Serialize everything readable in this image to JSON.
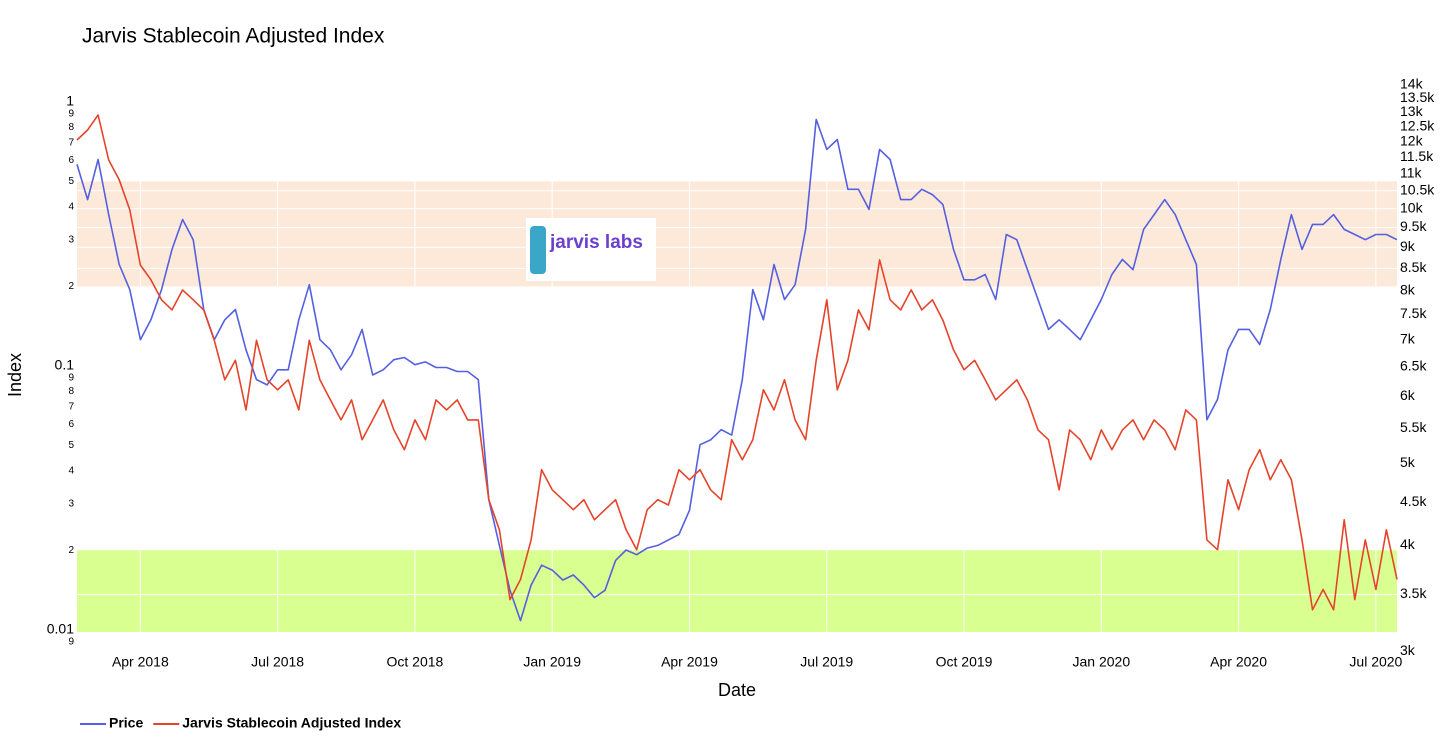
{
  "chart_data": {
    "type": "line",
    "title": "Jarvis Stablecoin Adjusted Index",
    "xlabel": "Date",
    "ylabel": "Index",
    "logo_text": "jarvis labs",
    "categories": [
      null,
      null,
      null,
      null,
      null,
      null,
      "Apr 2018",
      null,
      null,
      null,
      null,
      null,
      null,
      null,
      null,
      null,
      null,
      null,
      null,
      "Jul 2018",
      null,
      null,
      null,
      null,
      null,
      null,
      null,
      null,
      null,
      null,
      null,
      null,
      "Oct 2018",
      null,
      null,
      null,
      null,
      null,
      null,
      null,
      null,
      null,
      null,
      null,
      null,
      "Jan 2019",
      null,
      null,
      null,
      null,
      null,
      null,
      null,
      null,
      null,
      null,
      null,
      null,
      "Apr 2019",
      null,
      null,
      null,
      null,
      null,
      null,
      null,
      null,
      null,
      null,
      null,
      null,
      "Jul 2019",
      null,
      null,
      null,
      null,
      null,
      null,
      null,
      null,
      null,
      null,
      null,
      null,
      "Oct 2019",
      null,
      null,
      null,
      null,
      null,
      null,
      null,
      null,
      null,
      null,
      null,
      null,
      "Jan 2020",
      null,
      null,
      null,
      null,
      null,
      null,
      null,
      null,
      null,
      null,
      null,
      null,
      "Apr 2020",
      null,
      null,
      null,
      null,
      null,
      null,
      null,
      null,
      null,
      null,
      null,
      null,
      "Jul 2020",
      null,
      null
    ],
    "series": [
      {
        "name": "Price",
        "color": "#5560e0",
        "axis": "y2",
        "values": [
          11280,
          10250,
          11430,
          9840,
          8590,
          8020,
          7000,
          7390,
          8020,
          8950,
          9710,
          9190,
          7600,
          7000,
          7390,
          7600,
          6810,
          6280,
          6190,
          6450,
          6450,
          7390,
          8130,
          7000,
          6810,
          6450,
          6720,
          7200,
          6360,
          6450,
          6630,
          6670,
          6540,
          6590,
          6490,
          6490,
          6420,
          6420,
          6280,
          4530,
          4000,
          3540,
          3260,
          3590,
          3790,
          3740,
          3640,
          3690,
          3590,
          3470,
          3540,
          3840,
          3950,
          3900,
          3970,
          4000,
          4060,
          4120,
          4400,
          5260,
          5330,
          5480,
          5400,
          6280,
          8020,
          7390,
          8590,
          7810,
          8130,
          9450,
          12750,
          11750,
          12070,
          10540,
          10540,
          9980,
          11750,
          11430,
          10250,
          10250,
          10540,
          10390,
          10110,
          8950,
          8240,
          8240,
          8360,
          7810,
          9320,
          9190,
          8470,
          7810,
          7200,
          7390,
          7200,
          7000,
          7390,
          7810,
          8360,
          8710,
          8470,
          9450,
          9840,
          10250,
          9840,
          9190,
          8590,
          5630,
          5950,
          6810,
          7200,
          7200,
          6910,
          7600,
          8710,
          9840,
          8950,
          9580,
          9580,
          9840,
          9450,
          9320,
          9190,
          9320,
          9320,
          9190
        ]
      },
      {
        "name": "Jarvis Stablecoin Adjusted Index",
        "color": "#e5442a",
        "values": [
          0.718,
          0.783,
          0.893,
          0.603,
          0.507,
          0.39,
          0.241,
          0.212,
          0.178,
          0.163,
          0.194,
          0.178,
          0.163,
          0.125,
          0.0885,
          0.105,
          0.0681,
          0.125,
          0.0885,
          0.0811,
          0.0885,
          0.0681,
          0.125,
          0.0885,
          0.0743,
          0.0624,
          0.0743,
          0.0525,
          0.0624,
          0.0743,
          0.0572,
          0.0481,
          0.0624,
          0.0525,
          0.0743,
          0.0681,
          0.0743,
          0.0624,
          0.0624,
          0.0311,
          0.0239,
          0.013,
          0.0155,
          0.0219,
          0.0404,
          0.0339,
          0.0311,
          0.0285,
          0.0311,
          0.0261,
          0.0285,
          0.0311,
          0.0239,
          0.0201,
          0.0285,
          0.0311,
          0.0297,
          0.0404,
          0.037,
          0.0404,
          0.0339,
          0.0311,
          0.0525,
          0.0441,
          0.0525,
          0.0811,
          0.0681,
          0.0885,
          0.0624,
          0.0525,
          0.105,
          0.178,
          0.0811,
          0.105,
          0.163,
          0.137,
          0.252,
          0.178,
          0.163,
          0.194,
          0.163,
          0.178,
          0.149,
          0.115,
          0.0966,
          0.105,
          0.0885,
          0.0743,
          0.0811,
          0.0885,
          0.0743,
          0.0572,
          0.0525,
          0.0339,
          0.0572,
          0.0525,
          0.0441,
          0.0572,
          0.0481,
          0.0572,
          0.0624,
          0.0525,
          0.0624,
          0.0572,
          0.0481,
          0.0681,
          0.0624,
          0.0219,
          0.0201,
          0.037,
          0.0285,
          0.0404,
          0.0481,
          0.037,
          0.0441,
          0.037,
          0.0219,
          0.0119,
          0.0142,
          0.0119,
          0.0261,
          0.013,
          0.0219,
          0.0142,
          0.0239,
          0.0155
        ]
      }
    ],
    "ylog": true,
    "y2log": true,
    "ylim": [
      0.0098,
      1.16
    ],
    "yticks": [
      1,
      {
        "value": 0.9,
        "label": "9"
      },
      {
        "value": 0.8,
        "label": "8"
      },
      {
        "value": 0.7,
        "label": "7"
      },
      {
        "value": 0.6,
        "label": "6"
      },
      {
        "value": 0.5,
        "label": "5"
      },
      {
        "value": 0.4,
        "label": "4"
      },
      {
        "value": 0.3,
        "label": "3"
      },
      {
        "value": 0.2,
        "label": "2"
      },
      0.1,
      {
        "value": 0.09,
        "label": "9"
      },
      {
        "value": 0.08,
        "label": "8"
      },
      {
        "value": 0.07,
        "label": "7"
      },
      {
        "value": 0.06,
        "label": "6"
      },
      {
        "value": 0.05,
        "label": "5"
      },
      {
        "value": 0.04,
        "label": "4"
      },
      {
        "value": 0.03,
        "label": "3"
      },
      {
        "value": 0.02,
        "label": "2"
      },
      0.01,
      {
        "value": 0.009,
        "label": "9"
      }
    ],
    "y2lim": [
      3160,
      14000
    ],
    "y2ticks": [
      {
        "value": 3000,
        "label": "3k"
      },
      {
        "value": 3500,
        "label": "3.5k"
      },
      {
        "value": 4000,
        "label": "4k"
      },
      {
        "value": 4500,
        "label": "4.5k"
      },
      {
        "value": 5000,
        "label": "5k"
      },
      {
        "value": 5500,
        "label": "5.5k"
      },
      {
        "value": 6000,
        "label": "6k"
      },
      {
        "value": 6500,
        "label": "6.5k"
      },
      {
        "value": 7000,
        "label": "7k"
      },
      {
        "value": 7500,
        "label": "7.5k"
      },
      {
        "value": 8000,
        "label": "8k"
      },
      {
        "value": 8500,
        "label": "8.5k"
      },
      {
        "value": 9000,
        "label": "9k"
      },
      {
        "value": 9500,
        "label": "9.5k"
      },
      {
        "value": 10000,
        "label": "10k"
      },
      {
        "value": 10500,
        "label": "10.5k"
      },
      {
        "value": 11000,
        "label": "11k"
      },
      {
        "value": 11500,
        "label": "11.5k"
      },
      {
        "value": 12000,
        "label": "12k"
      },
      {
        "value": 12500,
        "label": "12.5k"
      },
      {
        "value": 13000,
        "label": "13k"
      },
      {
        "value": 13500,
        "label": "13.5k"
      },
      {
        "value": 14000,
        "label": "14k"
      }
    ],
    "bands": [
      {
        "from": 0.2,
        "to": 0.5,
        "color": "#fde9d9"
      },
      {
        "from": 0.0098,
        "to": 0.02,
        "color": "#d8ff90"
      }
    ],
    "grid": true,
    "legend": "bottom-left"
  }
}
